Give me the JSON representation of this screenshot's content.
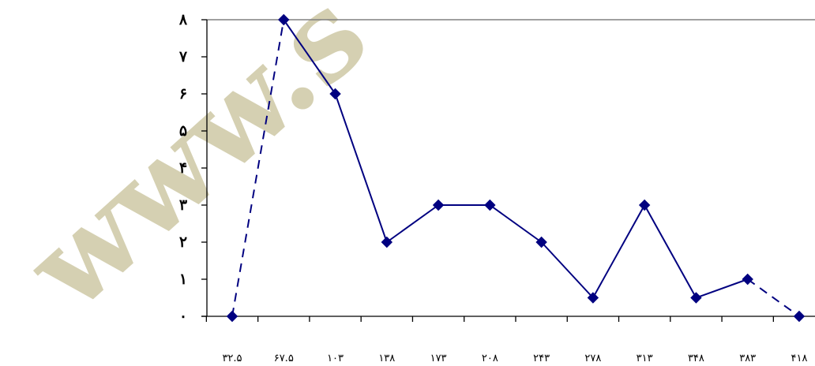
{
  "watermark": {
    "text": "www.s",
    "color": "#b3ab75"
  },
  "chart_data": {
    "type": "line",
    "title": "",
    "xlabel": "",
    "ylabel": "",
    "x_tick_labels": [
      "۳۲.۵",
      "۶۷.۵",
      "۱۰۳",
      "۱۳۸",
      "۱۷۳",
      "۲۰۸",
      "۲۴۳",
      "۲۷۸",
      "۳۱۳",
      "۳۴۸",
      "۳۸۳",
      "۴۱۸"
    ],
    "x": [
      32.5,
      67.5,
      103,
      138,
      173,
      208,
      243,
      278,
      313,
      348,
      383,
      418
    ],
    "y_tick_labels": [
      "۰",
      "۱",
      "۲",
      "۳",
      "۴",
      "۵",
      "۶",
      "۷",
      "۸"
    ],
    "ylim": [
      0,
      8
    ],
    "grid": {
      "horizontal_top_line": true
    },
    "legend": "none",
    "series": [
      {
        "values": [
          0,
          8,
          6,
          2,
          3,
          3,
          2,
          0.5,
          3,
          0.5,
          1,
          0
        ],
        "color": "#000080",
        "marker": "diamond",
        "dashed_segments": [
          [
            0,
            1
          ],
          [
            10,
            11
          ]
        ]
      }
    ]
  }
}
